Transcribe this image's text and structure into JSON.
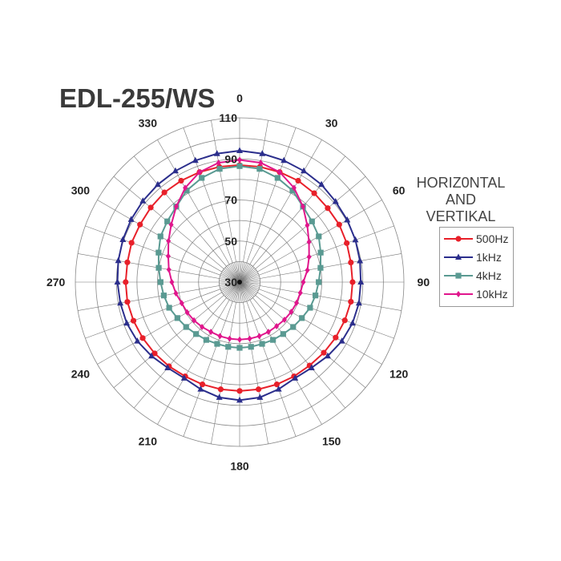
{
  "chart_data": {
    "type": "polar-line",
    "title": "EDL-255/WS",
    "legend_title": [
      "HORIZ0NTAL",
      "AND",
      "VERTIKAL"
    ],
    "legend_placement": "right",
    "angle_unit": "degrees",
    "angles": [
      0,
      10,
      20,
      30,
      40,
      50,
      60,
      70,
      80,
      90,
      100,
      110,
      120,
      130,
      140,
      150,
      160,
      170,
      180,
      190,
      200,
      210,
      220,
      230,
      240,
      250,
      260,
      270,
      280,
      290,
      300,
      310,
      320,
      330,
      340,
      350
    ],
    "angle_tick_labels": [
      "0",
      "30",
      "60",
      "90",
      "120",
      "150",
      "180",
      "210",
      "240",
      "270",
      "300",
      "330"
    ],
    "radial_range": [
      30,
      110
    ],
    "radial_tick_labels": [
      "30",
      "50",
      "70",
      "90",
      "110"
    ],
    "grid": true,
    "series": [
      {
        "name": "500Hz",
        "color": "#e8202a",
        "marker": "circle",
        "values": [
          87,
          87,
          87,
          87,
          86.5,
          86,
          86,
          85.5,
          85,
          85,
          85,
          84.5,
          84,
          83.5,
          83,
          83,
          83,
          83,
          83,
          83,
          83,
          83,
          83.5,
          84,
          84.5,
          85,
          85.5,
          85.5,
          85.5,
          86,
          86,
          86.5,
          87,
          87,
          87,
          87
        ]
      },
      {
        "name": "1kHz",
        "color": "#2b2e8c",
        "marker": "triangle",
        "values": [
          94,
          93.5,
          93,
          92.5,
          92,
          91,
          90.5,
          90,
          89.5,
          89,
          89,
          88.5,
          87.5,
          86,
          84.5,
          84,
          85.5,
          87,
          87.5,
          87,
          85.5,
          84,
          84.5,
          86,
          87.5,
          88.5,
          89,
          89.5,
          90,
          90.5,
          91,
          91.5,
          92,
          92.5,
          93,
          93.5
        ]
      },
      {
        "name": "4kHz",
        "color": "#5a9a92",
        "marker": "square",
        "values": [
          86.5,
          86,
          84,
          81.5,
          78,
          76,
          74.5,
          72,
          70,
          68.5,
          67.5,
          66.5,
          65,
          64,
          63,
          62.5,
          62,
          62,
          62,
          62,
          62,
          62.5,
          63,
          64,
          65,
          66.5,
          67.5,
          68.5,
          70,
          72,
          74.5,
          76,
          78,
          81.5,
          84,
          86
        ]
      },
      {
        "name": "10kHz",
        "color": "#e0168c",
        "marker": "diamond",
        "values": [
          89.5,
          89,
          87,
          83,
          78,
          73,
          69,
          66,
          63.5,
          61,
          60,
          59.5,
          59,
          58.5,
          58,
          58,
          58,
          58,
          58,
          58,
          58,
          58,
          58.5,
          59,
          59.5,
          60,
          61.5,
          63,
          65,
          67,
          70,
          73.5,
          78,
          83,
          87,
          89
        ]
      }
    ]
  }
}
